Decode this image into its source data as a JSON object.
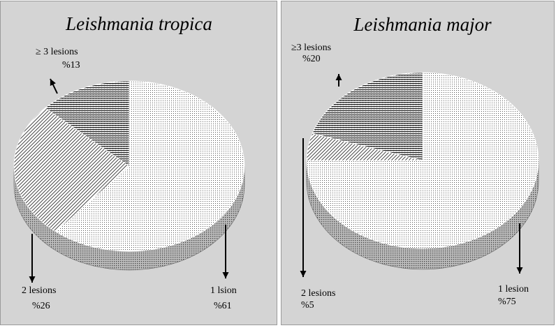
{
  "chart_data": [
    {
      "type": "pie",
      "title": "Leishmania tropica",
      "categories": [
        "1 lsion",
        "2 lesions",
        "≥ 3  lesions"
      ],
      "values": [
        61,
        26,
        13
      ],
      "value_labels": [
        "%61",
        "%26",
        "%13"
      ]
    },
    {
      "type": "pie",
      "title": "Leishmania major",
      "categories": [
        "1 lesion",
        "2 lesions",
        "≥3 lesions"
      ],
      "values": [
        75,
        5,
        20
      ],
      "value_labels": [
        "%75",
        "%5",
        "%20"
      ]
    }
  ],
  "colors": {
    "panel_background": "#d4d4d4",
    "slice_base": "#ffffff",
    "side_dark": "#777777"
  }
}
